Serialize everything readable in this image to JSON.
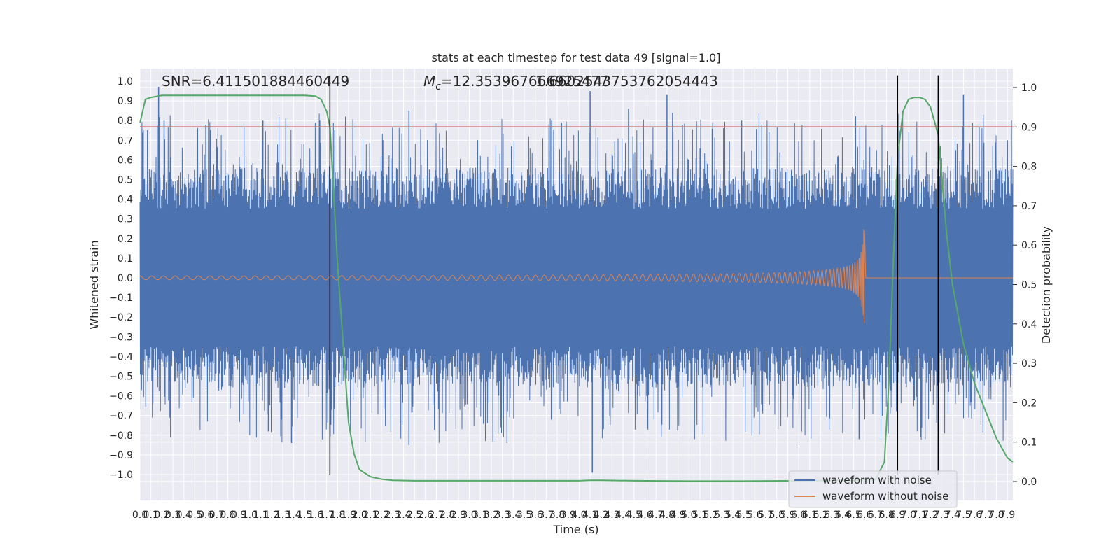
{
  "chart_data": {
    "type": "line",
    "title": "stats at each timestep for test data 49 [signal=1.0]",
    "xlabel": "Time (s)",
    "ylabel": "Whitened strain",
    "ylabel_right": "Detection probability",
    "xlim": [
      0.0,
      7.95
    ],
    "ylim": [
      -1.1,
      1.1
    ],
    "ylim_right": [
      -0.05,
      1.04
    ],
    "x_ticks": [
      "0.0",
      "0.1",
      "0.2",
      "0.3",
      "0.4",
      "0.5",
      "0.6",
      "0.7",
      "0.8",
      "0.9",
      "1.0",
      "1.1",
      "1.2",
      "1.3",
      "1.4",
      "1.5",
      "1.6",
      "1.7",
      "1.8",
      "1.9",
      "2.0",
      "2.1",
      "2.2",
      "2.3",
      "2.4",
      "2.5",
      "2.6",
      "2.7",
      "2.8",
      "2.9",
      "3.0",
      "3.1",
      "3.2",
      "3.3",
      "3.4",
      "3.5",
      "3.6",
      "3.7",
      "3.8",
      "3.9",
      "4.0",
      "4.1",
      "4.2",
      "4.3",
      "4.4",
      "4.5",
      "4.6",
      "4.7",
      "4.8",
      "4.9",
      "5.0",
      "5.1",
      "5.2",
      "5.3",
      "5.4",
      "5.5",
      "5.6",
      "5.7",
      "5.8",
      "5.9",
      "6.0",
      "6.1",
      "6.2",
      "6.3",
      "6.4",
      "6.5",
      "6.6",
      "6.7",
      "6.8",
      "6.9",
      "7.0",
      "7.1",
      "7.2",
      "7.3",
      "7.4",
      "7.5",
      "7.6",
      "7.7",
      "7.8",
      "7.9"
    ],
    "y_ticks": [
      "1.0",
      "0.9",
      "0.8",
      "0.7",
      "0.6",
      "0.5",
      "0.4",
      "0.3",
      "0.2",
      "0.1",
      "0.0",
      "−0.1",
      "−0.2",
      "−0.3",
      "−0.4",
      "−0.5",
      "−0.6",
      "−0.7",
      "−0.8",
      "−0.9",
      "−1.0"
    ],
    "y_right_ticks": [
      "1.0",
      "0.9",
      "0.8",
      "0.7",
      "0.6",
      "0.5",
      "0.4",
      "0.3",
      "0.2",
      "0.1",
      "0.0"
    ],
    "annotations": {
      "snr": "SNR=6.411501884460449",
      "mc": "M_c=12.353967666925477",
      "overlap": "1.6602543753762054443"
    },
    "threshold": 0.9,
    "vertical_lines_x": [
      1.73,
      6.9,
      7.27
    ],
    "series": [
      {
        "name": "waveform with noise",
        "color": "#4c72b0",
        "envelope_note": "noise spans approx -0.99 to 0.98",
        "spikes": [
          [
            0.03,
            0.75
          ],
          [
            0.17,
            0.97
          ],
          [
            0.22,
            0.8
          ],
          [
            0.6,
            0.78
          ],
          [
            1.12,
            0.8
          ],
          [
            1.17,
            -0.78
          ],
          [
            1.38,
            -0.84
          ],
          [
            2.45,
            -0.85
          ],
          [
            2.45,
            0.85
          ],
          [
            3.75,
            0.8
          ],
          [
            4.1,
            0.95
          ],
          [
            4.12,
            -0.99
          ],
          [
            4.45,
            0.86
          ],
          [
            4.8,
            0.93
          ],
          [
            5.05,
            -0.82
          ],
          [
            5.48,
            0.8
          ],
          [
            6.55,
            -0.82
          ],
          [
            7.5,
            0.93
          ],
          [
            7.55,
            -0.71
          ],
          [
            7.9,
            0.7
          ]
        ]
      },
      {
        "name": "waveform without noise",
        "color": "#dd8452",
        "note": "chirp with small amplitude growing to about 0.25 at t=6.6 s then flat at 0.0",
        "merger_time": 6.6,
        "peak_amplitude": 0.25
      },
      {
        "name": "",
        "color": "#55a868",
        "axis": "right",
        "x": [
          0.0,
          0.05,
          0.1,
          0.2,
          0.3,
          0.5,
          0.8,
          1.0,
          1.3,
          1.5,
          1.6,
          1.65,
          1.7,
          1.73,
          1.76,
          1.8,
          1.85,
          1.9,
          1.95,
          2.0,
          2.1,
          2.2,
          2.3,
          2.5,
          3.0,
          3.5,
          4.0,
          4.1,
          4.2,
          4.5,
          5.0,
          5.5,
          6.0,
          6.5,
          6.7,
          6.78,
          6.82,
          6.86,
          6.9,
          6.95,
          7.0,
          7.05,
          7.1,
          7.15,
          7.2,
          7.25,
          7.27,
          7.3,
          7.35,
          7.4,
          7.5,
          7.6,
          7.7,
          7.8,
          7.9,
          7.95
        ],
        "values": [
          0.91,
          0.97,
          0.975,
          0.98,
          0.98,
          0.98,
          0.98,
          0.98,
          0.98,
          0.98,
          0.978,
          0.97,
          0.94,
          0.9,
          0.75,
          0.55,
          0.35,
          0.15,
          0.07,
          0.03,
          0.012,
          0.006,
          0.003,
          0.002,
          0.002,
          0.002,
          0.002,
          0.003,
          0.003,
          0.002,
          0.001,
          0.001,
          0.002,
          0.003,
          0.005,
          0.05,
          0.25,
          0.55,
          0.82,
          0.94,
          0.97,
          0.975,
          0.975,
          0.97,
          0.95,
          0.9,
          0.88,
          0.78,
          0.62,
          0.5,
          0.35,
          0.25,
          0.18,
          0.11,
          0.06,
          0.05
        ]
      }
    ],
    "threshold_color": "#c44e52",
    "legend": {
      "placement": "lower-right",
      "entries": [
        "waveform with noise",
        "waveform without noise"
      ]
    },
    "grid": true
  }
}
